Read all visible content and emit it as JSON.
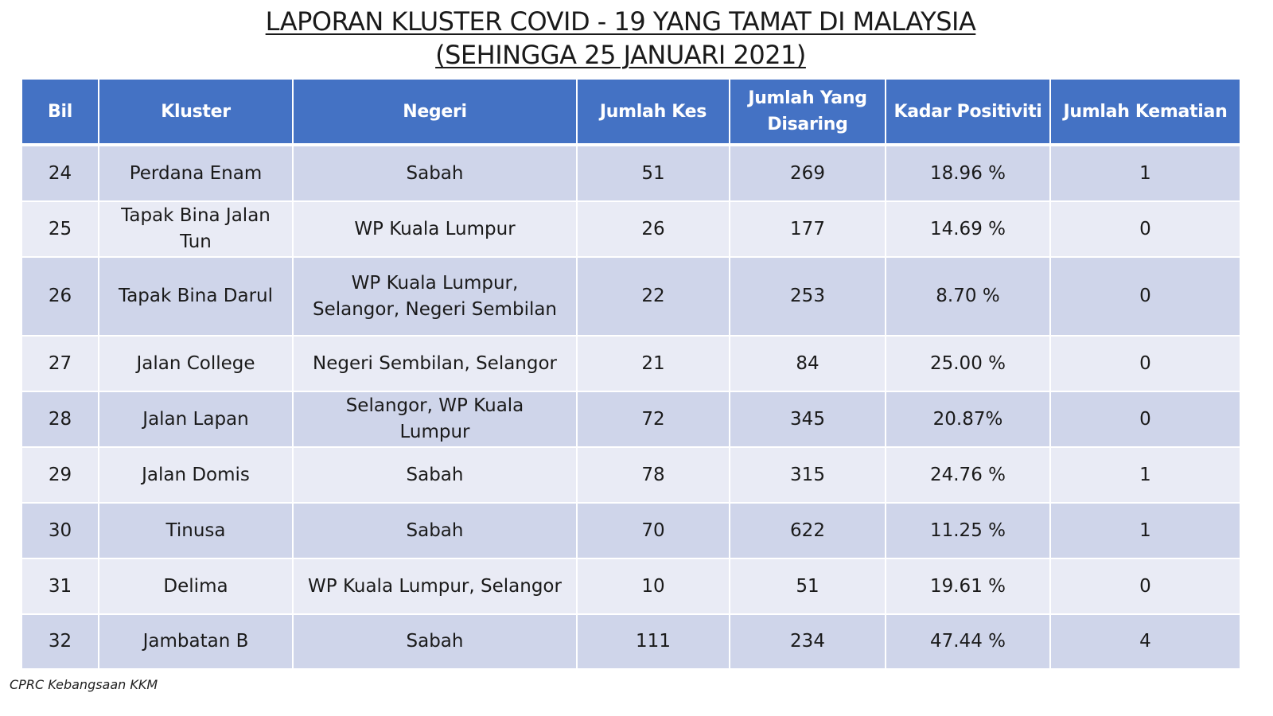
{
  "title": {
    "line1": "LAPORAN KLUSTER COVID - 19 YANG TAMAT DI MALAYSIA",
    "line2": "(SEHINGGA  25 JANUARI 2021)"
  },
  "table": {
    "headers": [
      "Bil",
      "Kluster",
      "Negeri",
      "Jumlah Kes",
      "Jumlah Yang Disaring",
      "Kadar Positiviti",
      "Jumlah Kematian"
    ],
    "rows": [
      [
        "24",
        "Perdana Enam",
        "Sabah",
        "51",
        "269",
        "18.96 %",
        "1"
      ],
      [
        "25",
        "Tapak Bina Jalan Tun",
        "WP Kuala Lumpur",
        "26",
        "177",
        "14.69 %",
        "0"
      ],
      [
        "26",
        "Tapak Bina Darul",
        "WP Kuala Lumpur, Selangor, Negeri Sembilan",
        "22",
        "253",
        "8.70 %",
        "0"
      ],
      [
        "27",
        "Jalan College",
        "Negeri Sembilan, Selangor",
        "21",
        "84",
        "25.00 %",
        "0"
      ],
      [
        "28",
        "Jalan Lapan",
        "Selangor, WP Kuala Lumpur",
        "72",
        "345",
        "20.87%",
        "0"
      ],
      [
        "29",
        "Jalan Domis",
        "Sabah",
        "78",
        "315",
        "24.76 %",
        "1"
      ],
      [
        "30",
        "Tinusa",
        "Sabah",
        "70",
        "622",
        "11.25 %",
        "1"
      ],
      [
        "31",
        "Delima",
        "WP Kuala Lumpur, Selangor",
        "10",
        "51",
        "19.61 %",
        "0"
      ],
      [
        "32",
        "Jambatan B",
        "Sabah",
        "111",
        "234",
        "47.44 %",
        "4"
      ]
    ]
  },
  "footer": {
    "source": "CPRC Kebangsaan KKM"
  },
  "colors": {
    "header_bg": "#4472c4",
    "row_dark": "#cfd5ea",
    "row_light": "#e9ebf5"
  }
}
